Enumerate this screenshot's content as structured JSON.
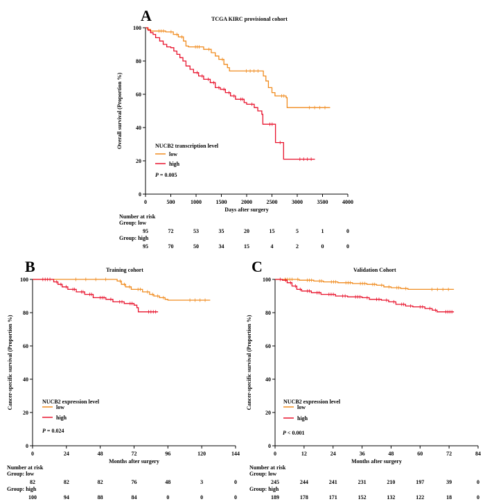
{
  "colors": {
    "low": "#f08a1c",
    "high": "#e8102a",
    "axis": "#000000"
  },
  "chart_data": [
    {
      "panel": "A",
      "type": "line",
      "title": "TCGA KIRC provisional cohort",
      "xlabel": "Days  after surgery",
      "ylabel": "Overall survival (Proportion %)",
      "xlim": [
        0,
        4000
      ],
      "ylim": [
        0,
        100
      ],
      "xticks": [
        0,
        500,
        1000,
        1500,
        2000,
        2500,
        3000,
        3500,
        4000
      ],
      "yticks": [
        0,
        20,
        40,
        60,
        80,
        100
      ],
      "legend_title": "NUCB2 transcription level",
      "pvalue_label": "P",
      "pvalue_text": " = 0.005",
      "risk_header": "Number at risk",
      "group_low_label": "Group: low",
      "group_high_label": "Group: high",
      "risk_x": [
        0,
        500,
        1000,
        1500,
        2000,
        2500,
        3000,
        3500,
        4000
      ],
      "risk_low": [
        "95",
        "72",
        "53",
        "35",
        "20",
        "15",
        "5",
        "1",
        "0"
      ],
      "risk_high": [
        "95",
        "70",
        "50",
        "34",
        "15",
        "4",
        "2",
        "0",
        "0"
      ],
      "series": [
        {
          "name": "low",
          "points": [
            [
              0,
              100
            ],
            [
              40,
              99
            ],
            [
              100,
              98
            ],
            [
              400,
              97.5
            ],
            [
              550,
              96
            ],
            [
              650,
              94.5
            ],
            [
              750,
              92
            ],
            [
              800,
              89
            ],
            [
              850,
              88.5
            ],
            [
              1100,
              88.5
            ],
            [
              1150,
              87
            ],
            [
              1300,
              85
            ],
            [
              1380,
              83
            ],
            [
              1450,
              81
            ],
            [
              1550,
              78
            ],
            [
              1620,
              76
            ],
            [
              1660,
              74
            ],
            [
              2300,
              74
            ],
            [
              2330,
              71
            ],
            [
              2380,
              68
            ],
            [
              2430,
              64
            ],
            [
              2500,
              61
            ],
            [
              2560,
              59
            ],
            [
              2780,
              58
            ],
            [
              2800,
              52
            ],
            [
              3650,
              52
            ]
          ]
        },
        {
          "name": "high",
          "points": [
            [
              0,
              100
            ],
            [
              50,
              98.5
            ],
            [
              100,
              97
            ],
            [
              150,
              96
            ],
            [
              200,
              94
            ],
            [
              280,
              92
            ],
            [
              350,
              90
            ],
            [
              420,
              88.5
            ],
            [
              500,
              88
            ],
            [
              560,
              86
            ],
            [
              620,
              84
            ],
            [
              680,
              82
            ],
            [
              740,
              80
            ],
            [
              800,
              77
            ],
            [
              880,
              75
            ],
            [
              950,
              73
            ],
            [
              1050,
              71
            ],
            [
              1150,
              69
            ],
            [
              1280,
              67
            ],
            [
              1380,
              64
            ],
            [
              1480,
              63
            ],
            [
              1580,
              61
            ],
            [
              1680,
              59
            ],
            [
              1780,
              57
            ],
            [
              1950,
              55
            ],
            [
              2000,
              54
            ],
            [
              2150,
              52
            ],
            [
              2220,
              50
            ],
            [
              2300,
              48
            ],
            [
              2320,
              42
            ],
            [
              2550,
              42
            ],
            [
              2570,
              31
            ],
            [
              2700,
              31
            ],
            [
              2730,
              21
            ],
            [
              3350,
              21
            ]
          ]
        }
      ]
    },
    {
      "panel": "B",
      "type": "line",
      "title": "Training cohort",
      "xlabel": "Months after surgery",
      "ylabel": "Cancer-specific survival (Proportion %)",
      "xlim": [
        0,
        144
      ],
      "ylim": [
        0,
        100
      ],
      "xticks": [
        0,
        24,
        48,
        72,
        96,
        120,
        144
      ],
      "yticks": [
        0,
        20,
        40,
        60,
        80,
        100
      ],
      "legend_title": "NUCB2 expression level",
      "pvalue_label": "P",
      "pvalue_text": " = 0.024",
      "risk_header": "Number at risk",
      "group_low_label": "Group: low",
      "group_high_label": "Group: high",
      "risk_x": [
        0,
        24,
        48,
        72,
        96,
        120,
        144
      ],
      "risk_low": [
        "82",
        "82",
        "82",
        "76",
        "48",
        "3",
        "0"
      ],
      "risk_high": [
        "100",
        "94",
        "88",
        "84",
        "0",
        "0",
        "0"
      ],
      "series": [
        {
          "name": "low",
          "points": [
            [
              0,
              100
            ],
            [
              59,
              100
            ],
            [
              60,
              99
            ],
            [
              63,
              97
            ],
            [
              66,
              95.5
            ],
            [
              70,
              94
            ],
            [
              78,
              92.5
            ],
            [
              83,
              91
            ],
            [
              86,
              90
            ],
            [
              90,
              89
            ],
            [
              94,
              88
            ],
            [
              96,
              87.5
            ],
            [
              126,
              87.5
            ]
          ]
        },
        {
          "name": "high",
          "points": [
            [
              0,
              100
            ],
            [
              14,
              100
            ],
            [
              15,
              98.5
            ],
            [
              18,
              97
            ],
            [
              21,
              95.5
            ],
            [
              25,
              94
            ],
            [
              31,
              92.5
            ],
            [
              37,
              91
            ],
            [
              43,
              89
            ],
            [
              52,
              88
            ],
            [
              57,
              86.5
            ],
            [
              65,
              85.5
            ],
            [
              72,
              84.5
            ],
            [
              74,
              83
            ],
            [
              75,
              80.5
            ],
            [
              89,
              80.5
            ]
          ]
        }
      ]
    },
    {
      "panel": "C",
      "type": "line",
      "title": "Validation Cohort",
      "xlabel": "Months after surgery",
      "ylabel": "Cancer-specific survival (Proportion %)",
      "xlim": [
        0,
        84
      ],
      "ylim": [
        0,
        100
      ],
      "xticks": [
        0,
        12,
        24,
        36,
        48,
        60,
        72,
        84
      ],
      "yticks": [
        0,
        20,
        40,
        60,
        80,
        100
      ],
      "legend_title": "NUCB2 expression level",
      "pvalue_label": "P",
      "pvalue_text": " < 0.001",
      "risk_header": "Number at risk",
      "group_low_label": "Group: low",
      "group_high_label": "Group: high",
      "risk_x": [
        0,
        12,
        24,
        36,
        48,
        60,
        72,
        84
      ],
      "risk_low": [
        "245",
        "244",
        "241",
        "231",
        "210",
        "197",
        "39",
        "0"
      ],
      "risk_high": [
        "189",
        "178",
        "171",
        "152",
        "132",
        "122",
        "18",
        "0"
      ],
      "series": [
        {
          "name": "low",
          "points": [
            [
              0,
              100
            ],
            [
              8,
              100
            ],
            [
              10,
              99.5
            ],
            [
              16,
              99
            ],
            [
              20,
              98.5
            ],
            [
              26,
              98
            ],
            [
              32,
              97.5
            ],
            [
              38,
              97
            ],
            [
              42,
              96.5
            ],
            [
              45,
              95.5
            ],
            [
              48,
              95
            ],
            [
              52,
              94.5
            ],
            [
              55,
              94
            ],
            [
              74,
              94
            ]
          ]
        },
        {
          "name": "high",
          "points": [
            [
              0,
              100
            ],
            [
              3,
              99.5
            ],
            [
              5,
              98
            ],
            [
              7,
              96
            ],
            [
              9,
              94
            ],
            [
              11,
              93
            ],
            [
              15,
              92
            ],
            [
              19,
              91
            ],
            [
              25,
              90
            ],
            [
              30,
              89.5
            ],
            [
              36,
              89
            ],
            [
              39,
              88
            ],
            [
              44,
              87.5
            ],
            [
              47,
              86.5
            ],
            [
              50,
              85
            ],
            [
              54,
              84
            ],
            [
              57,
              83.5
            ],
            [
              62,
              82.5
            ],
            [
              65,
              81.5
            ],
            [
              67,
              80.5
            ],
            [
              74,
              80.5
            ]
          ]
        }
      ]
    }
  ]
}
